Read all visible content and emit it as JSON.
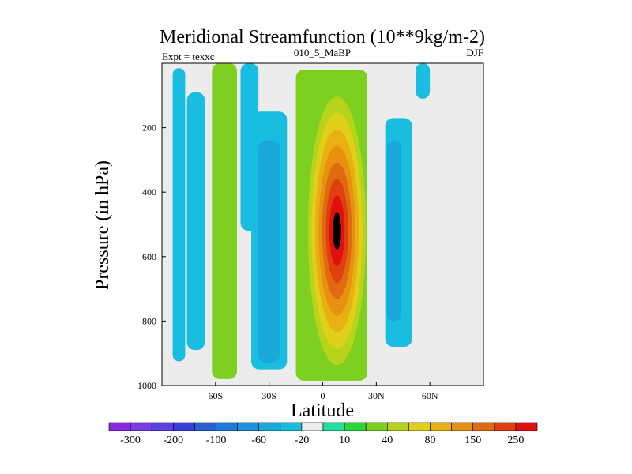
{
  "chart_data": {
    "type": "heatmap",
    "title": "Meridional Streamfunction (10**9kg/m-2)",
    "left_label": "Expt = texxc",
    "center_label": "010_5_MaBP",
    "right_label": "DJF",
    "xlabel": "Latitude",
    "ylabel": "Pressure (in hPa)",
    "xlim": [
      -90,
      90
    ],
    "ylim": [
      1000,
      0
    ],
    "x_ticks": [
      {
        "value": -60,
        "label": "60S"
      },
      {
        "value": -30,
        "label": "30S"
      },
      {
        "value": 0,
        "label": "0"
      },
      {
        "value": 30,
        "label": "30N"
      },
      {
        "value": 60,
        "label": "60N"
      }
    ],
    "y_ticks": [
      {
        "value": 200,
        "label": "200"
      },
      {
        "value": 400,
        "label": "400"
      },
      {
        "value": 600,
        "label": "600"
      },
      {
        "value": 800,
        "label": "800"
      },
      {
        "value": 1000,
        "label": "1000"
      }
    ],
    "colorbar": {
      "colors": [
        "#8a2be2",
        "#7a3ee6",
        "#5b3fe0",
        "#3b3fd8",
        "#2a5fd6",
        "#1e7ad8",
        "#1e90e0",
        "#18a8dc",
        "#19bde0",
        "#ececec",
        "#1fe0a0",
        "#2bd63a",
        "#7ed020",
        "#b8d41a",
        "#e0d01a",
        "#e8b012",
        "#e89010",
        "#e06a10",
        "#e04010",
        "#e01010"
      ],
      "labels": [
        {
          "boundary": 1,
          "text": "-300"
        },
        {
          "boundary": 3,
          "text": "-200"
        },
        {
          "boundary": 5,
          "text": "-100"
        },
        {
          "boundary": 7,
          "text": "-60"
        },
        {
          "boundary": 9,
          "text": "-20"
        },
        {
          "boundary": 11,
          "text": "10"
        },
        {
          "boundary": 13,
          "text": "40"
        },
        {
          "boundary": 15,
          "text": "80"
        },
        {
          "boundary": 17,
          "text": "150"
        },
        {
          "boundary": 19,
          "text": "250"
        }
      ]
    },
    "bands": [
      {
        "kind": "light",
        "lat_min": -84,
        "lat_max": -77,
        "p_top": 15,
        "p_bot": 925
      },
      {
        "kind": "light",
        "lat_min": -76,
        "lat_max": -66,
        "p_top": 90,
        "p_bot": 890
      },
      {
        "kind": "green",
        "lat_min": -62,
        "lat_max": -48,
        "p_top": 0,
        "p_bot": 980
      },
      {
        "kind": "light",
        "lat_min": -46,
        "lat_max": -36,
        "p_top": 0,
        "p_bot": 520
      },
      {
        "kind": "light",
        "lat_min": -40,
        "lat_max": -20,
        "p_top": 150,
        "p_bot": 950
      },
      {
        "kind": "mid",
        "lat_min": -36,
        "lat_max": -24,
        "p_top": 240,
        "p_bot": 930
      },
      {
        "kind": "green",
        "lat_min": -15,
        "lat_max": 25,
        "p_top": 20,
        "p_bot": 985
      },
      {
        "kind": "light",
        "lat_min": 35,
        "lat_max": 50,
        "p_top": 170,
        "p_bot": 880
      },
      {
        "kind": "mid",
        "lat_min": 36,
        "lat_max": 44,
        "p_top": 240,
        "p_bot": 800
      },
      {
        "kind": "light",
        "lat_min": 52,
        "lat_max": 60,
        "p_top": 0,
        "p_bot": 110
      }
    ],
    "core": {
      "lat_center": 8,
      "p_center": 520,
      "peak_level": 19,
      "base_level": 11
    }
  }
}
